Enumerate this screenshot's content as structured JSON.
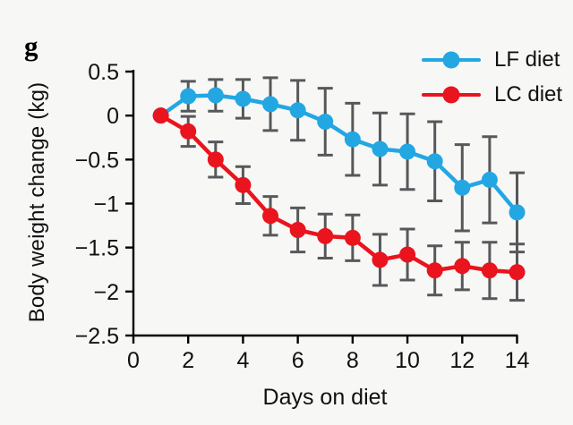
{
  "panel_label": "g",
  "colors": {
    "lf_series": "#23a7e3",
    "lc_series": "#e9141d",
    "error_bar": "#57585a",
    "axis": "#000000",
    "text": "#111111",
    "background": "#f7f7f6"
  },
  "legend": {
    "items": [
      {
        "label": "LF diet",
        "color": "#23a7e3"
      },
      {
        "label": "LC diet",
        "color": "#e9141d"
      }
    ]
  },
  "chart_data": {
    "type": "line",
    "title": "",
    "xlabel": "Days on diet",
    "ylabel": "Body weight change (kg)",
    "x": [
      1,
      2,
      3,
      4,
      5,
      6,
      7,
      8,
      9,
      10,
      11,
      12,
      13,
      14
    ],
    "xlim": [
      0,
      14
    ],
    "ylim": [
      -2.5,
      0.5
    ],
    "x_ticks": [
      0,
      2,
      4,
      6,
      8,
      10,
      12,
      14
    ],
    "x_tick_labels": [
      "0",
      "2",
      "4",
      "6",
      "8",
      "10",
      "12",
      "14"
    ],
    "y_ticks": [
      0.5,
      0,
      -0.5,
      -1,
      -1.5,
      -2,
      -2.5
    ],
    "y_tick_labels": [
      "0.5",
      "0",
      "−0.5",
      "−1",
      "−1.5",
      "−2",
      "−2.5"
    ],
    "grid": false,
    "error_bars": true,
    "legend_position": "top-right",
    "series": [
      {
        "name": "LF diet",
        "color": "#23a7e3",
        "values": [
          0,
          0.22,
          0.23,
          0.19,
          0.13,
          0.06,
          -0.07,
          -0.27,
          -0.38,
          -0.41,
          -0.52,
          -0.82,
          -0.73,
          -1.1
        ],
        "errors": [
          0,
          0.17,
          0.18,
          0.22,
          0.3,
          0.34,
          0.38,
          0.41,
          0.41,
          0.43,
          0.45,
          0.49,
          0.49,
          0.45
        ]
      },
      {
        "name": "LC diet",
        "color": "#e9141d",
        "values": [
          0,
          -0.18,
          -0.5,
          -0.79,
          -1.14,
          -1.3,
          -1.37,
          -1.39,
          -1.64,
          -1.58,
          -1.76,
          -1.71,
          -1.76,
          -1.78
        ],
        "errors": [
          0,
          0.17,
          0.2,
          0.21,
          0.22,
          0.25,
          0.25,
          0.26,
          0.29,
          0.29,
          0.28,
          0.27,
          0.32,
          0.32
        ]
      }
    ]
  }
}
